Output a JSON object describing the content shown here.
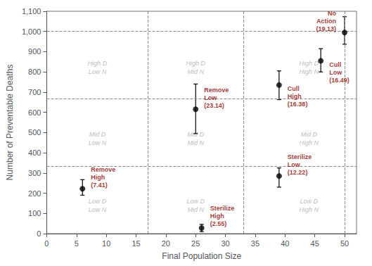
{
  "chart_data": {
    "type": "scatter",
    "xlabel": "Final Population Size",
    "ylabel": "Number of Preventable Deaths",
    "xlim": [
      0,
      52
    ],
    "ylim": [
      0,
      1100
    ],
    "xticks": [
      0,
      5,
      10,
      15,
      20,
      25,
      30,
      35,
      40,
      45,
      50
    ],
    "yticks": [
      0,
      100,
      200,
      300,
      400,
      500,
      600,
      700,
      800,
      900,
      1000,
      1100
    ],
    "grid": false,
    "color": "black",
    "marker": "circle",
    "x": [
      6,
      26,
      25,
      39,
      39,
      46,
      50
    ],
    "values": [
      222,
      28,
      615,
      285,
      735,
      855,
      995
    ],
    "error_low": [
      32,
      18,
      120,
      55,
      72,
      55,
      58
    ],
    "error_high": [
      45,
      18,
      125,
      40,
      70,
      60,
      78
    ],
    "point_labels": {
      "color": "#8B0000",
      "texts": [
        "Remove\nHigh\n(7.41)",
        "Sterilize\nHigh\n(2.55)",
        "Remove\nLow\n(23.14)",
        "Sterilize\nLow\n(12.22)",
        "Cull\nHigh\n(16.38)",
        "Cull\nLow\n(16.49)",
        "No\nAction\n(19.13)"
      ]
    },
    "reference_lines": {
      "color": "#888888",
      "line_style": "dashed",
      "x": [
        17,
        33,
        50
      ],
      "y": [
        333,
        667,
        1000
      ]
    },
    "region_labels": {
      "color": "#aaaaaa",
      "items": [
        {
          "text": "High D\nLow N",
          "x": 8.5,
          "y": 820
        },
        {
          "text": "High D\nMid N",
          "x": 25,
          "y": 820
        },
        {
          "text": "High D\nHigh N",
          "x": 44,
          "y": 820
        },
        {
          "text": "Mid D\nLow N",
          "x": 8.5,
          "y": 470
        },
        {
          "text": "Mid D\nMid N",
          "x": 25,
          "y": 470
        },
        {
          "text": "Mid D\nHigh N",
          "x": 44,
          "y": 470
        },
        {
          "text": "Low D\nLow N",
          "x": 8.5,
          "y": 140
        },
        {
          "text": "Low D\nMid N",
          "x": 25,
          "y": 140
        },
        {
          "text": "Low D\nHigh N",
          "x": 44,
          "y": 140
        }
      ]
    }
  }
}
